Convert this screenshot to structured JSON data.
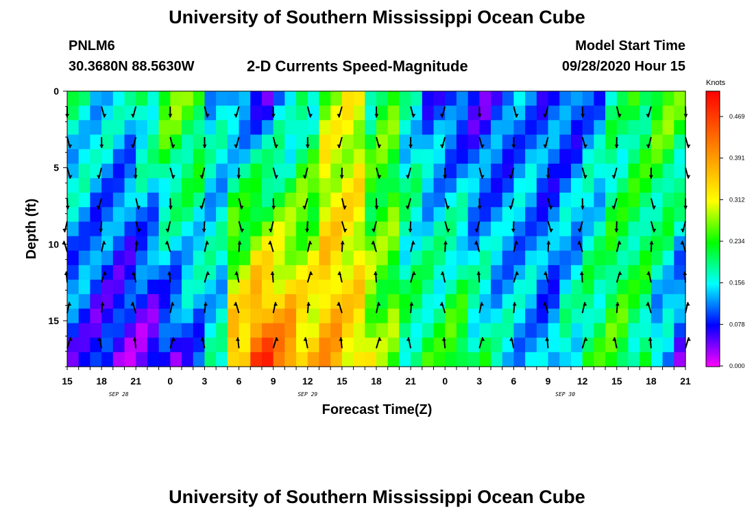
{
  "header": {
    "title": "University of Southern Mississippi Ocean Cube",
    "station": "PNLM6",
    "coords": "30.3680N 88.5630W",
    "model_label": "Model Start Time",
    "model_time": "09/28/2020 Hour 15",
    "bottom_title": "University of Southern Mississippi Ocean Cube"
  },
  "chart_data": {
    "type": "heatmap",
    "title": "2-D Currents Speed-Magnitude",
    "xlabel": "Forecast Time(Z)",
    "ylabel": "Depth (ft)",
    "x_ticks": [
      "15",
      "18",
      "21",
      "0",
      "3",
      "6",
      "9",
      "12",
      "15",
      "18",
      "21",
      "0",
      "3",
      "6",
      "9",
      "12",
      "15",
      "18",
      "21"
    ],
    "date_labels": [
      {
        "text": "SEP 28",
        "hour_index": 4.5
      },
      {
        "text": "SEP 29",
        "hour_index": 21
      },
      {
        "text": "SEP 30",
        "hour_index": 43.5
      }
    ],
    "y_ticks": [
      0,
      5,
      10,
      15
    ],
    "ylim": [
      0,
      18
    ],
    "hours": 54,
    "colorbar": {
      "title": "Knots",
      "ticks": [
        "0.469",
        "0.391",
        "0.312",
        "0.234",
        "0.156",
        "0.078",
        "0.000"
      ],
      "range": [
        0,
        0.52
      ]
    },
    "depth_rows": [
      "0",
      "0.8",
      "1.6",
      "2.5",
      "3.3",
      "4.5",
      "5.5",
      "6.5",
      "7.5",
      "8.5",
      "9.5",
      "10.5",
      "11.5",
      "12.5",
      "13.5",
      "14.5",
      "15.5",
      "16.5",
      "17.5"
    ],
    "speed_profiles": {
      "shallow": [
        0.18,
        0.16,
        0.15,
        0.2,
        0.26,
        0.24,
        0.15,
        0.1,
        0.08,
        0.12,
        0.18,
        0.28,
        0.3,
        0.2,
        0.24,
        0.16,
        0.1,
        0.08,
        0.07,
        0.09,
        0.12,
        0.1,
        0.09,
        0.12,
        0.18,
        0.22,
        0.26,
        0.24
      ],
      "deep": [
        0.08,
        0.06,
        0.05,
        0.04,
        0.06,
        0.1,
        0.16,
        0.38,
        0.46,
        0.42,
        0.36,
        0.38,
        0.34,
        0.3,
        0.26,
        0.2,
        0.22,
        0.25,
        0.2,
        0.16,
        0.14,
        0.12,
        0.18,
        0.22,
        0.24,
        0.2,
        0.12,
        0.07
      ]
    },
    "legend": "right"
  }
}
